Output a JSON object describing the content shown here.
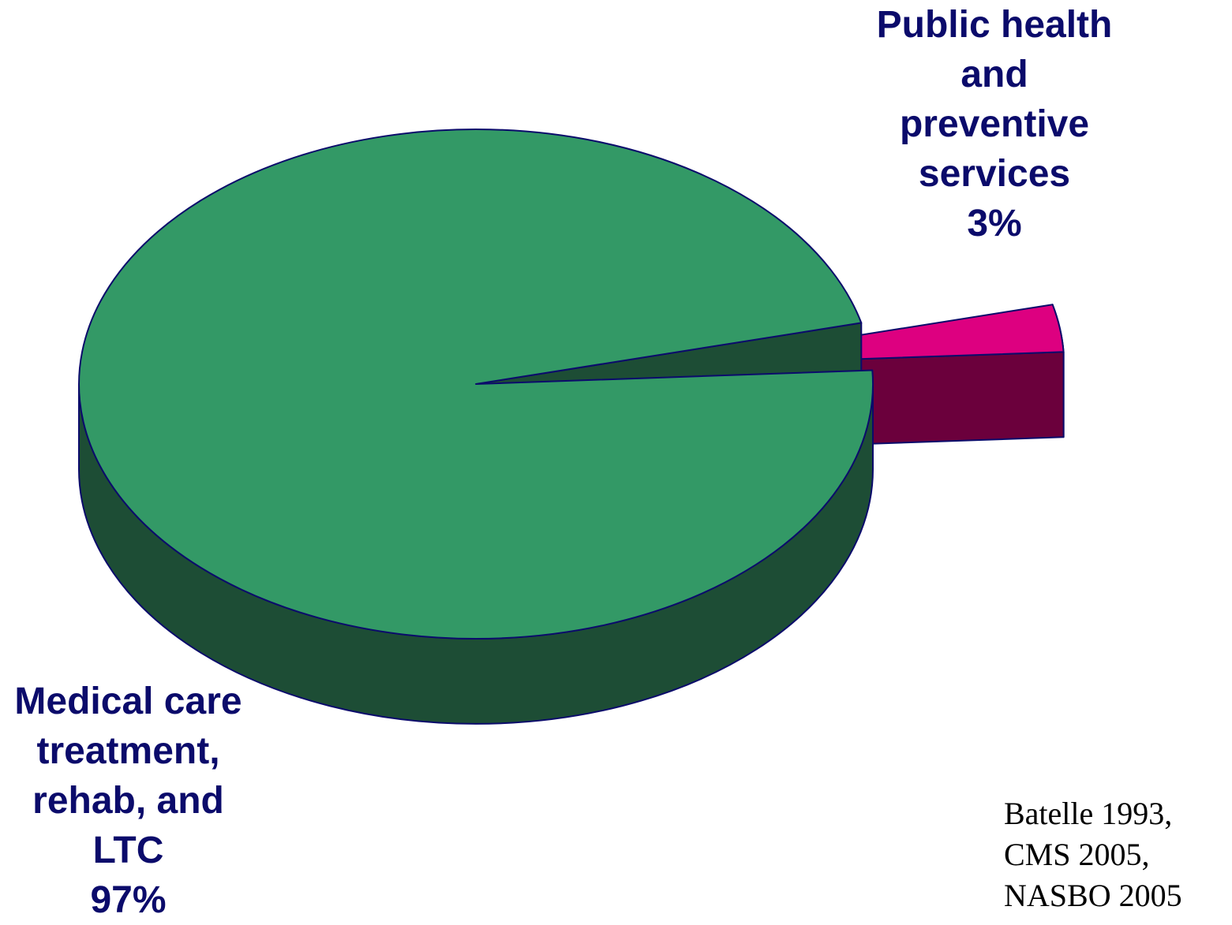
{
  "chart_data": {
    "type": "pie",
    "style": "3d-exploded",
    "slices": [
      {
        "key": "medical",
        "label_lines": [
          "Medical care",
          "treatment,",
          "rehab, and",
          "LTC",
          "97%"
        ],
        "value": 97,
        "top_color": "#339966",
        "side_color": "#1d4d35"
      },
      {
        "key": "public",
        "label_lines": [
          "Public health",
          "and",
          "preventive",
          "services",
          "3%"
        ],
        "value": 3,
        "top_color": "#dd0080",
        "side_color": "#6b003c"
      }
    ],
    "label_color": "#0b0b6b",
    "outline_color": "#0b0b6b"
  },
  "source": {
    "lines": [
      "Batelle 1993,",
      "CMS 2005,",
      "NASBO 2005"
    ]
  }
}
